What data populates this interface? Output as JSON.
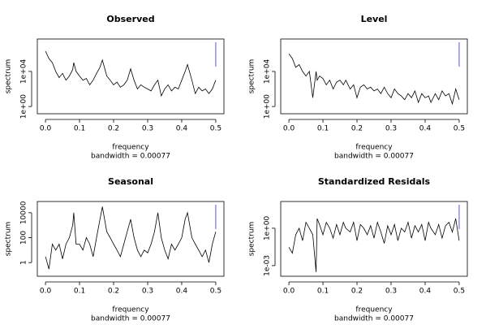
{
  "chart_data": [
    {
      "type": "line",
      "title": "Observed",
      "x_label": "frequency",
      "subtitle": "bandwidth = 0.00077",
      "y_label": "spectrum",
      "ylog": true,
      "color": "#000000",
      "x": [
        0,
        0.01,
        0.02,
        0.03,
        0.04,
        0.05,
        0.06,
        0.07,
        0.08,
        0.083,
        0.09,
        0.1,
        0.11,
        0.12,
        0.13,
        0.14,
        0.15,
        0.16,
        0.167,
        0.18,
        0.19,
        0.2,
        0.21,
        0.22,
        0.23,
        0.24,
        0.25,
        0.26,
        0.27,
        0.28,
        0.29,
        0.3,
        0.31,
        0.32,
        0.33,
        0.34,
        0.35,
        0.36,
        0.37,
        0.38,
        0.39,
        0.4,
        0.41,
        0.417,
        0.43,
        0.44,
        0.45,
        0.46,
        0.47,
        0.48,
        0.49,
        0.5
      ],
      "values": [
        2000000.0,
        300000.0,
        100000.0,
        10000.0,
        2000.0,
        6000.0,
        1000.0,
        3000.0,
        16000.0,
        100000.0,
        10000.0,
        3000.0,
        1000.0,
        1600.0,
        300,
        1000.0,
        6000.0,
        30000.0,
        200000.0,
        3000.0,
        1000.0,
        300,
        600,
        160,
        300,
        1000.0,
        20000.0,
        1000.0,
        100,
        300,
        160,
        100,
        60,
        300,
        1000.0,
        16,
        100,
        300,
        60,
        160,
        100,
        1000.0,
        10000.0,
        60000.0,
        1000.0,
        30,
        160,
        60,
        100,
        30,
        100,
        1000.0
      ],
      "xlim": [
        -0.024,
        0.524
      ],
      "xticks": [
        {
          "value": 0,
          "label": "0.0"
        },
        {
          "value": 0.1,
          "label": "0.1"
        },
        {
          "value": 0.2,
          "label": "0.2"
        },
        {
          "value": 0.3,
          "label": "0.3"
        },
        {
          "value": 0.4,
          "label": "0.4"
        },
        {
          "value": 0.5,
          "label": "0.5"
        }
      ],
      "ylim": [
        0.15,
        50000000.0
      ],
      "yticks": [
        {
          "value": 1,
          "label": "1e+00"
        },
        {
          "value": 10000,
          "label": "1e+04"
        }
      ]
    },
    {
      "type": "line",
      "title": "Level",
      "x_label": "frequency",
      "subtitle": "bandwidth = 0.00077",
      "y_label": "spectrum",
      "ylog": true,
      "color": "#000000",
      "x": [
        0,
        0.01,
        0.02,
        0.03,
        0.04,
        0.05,
        0.06,
        0.07,
        0.08,
        0.083,
        0.09,
        0.1,
        0.11,
        0.12,
        0.13,
        0.14,
        0.15,
        0.16,
        0.167,
        0.18,
        0.19,
        0.2,
        0.21,
        0.22,
        0.23,
        0.24,
        0.25,
        0.26,
        0.27,
        0.28,
        0.29,
        0.3,
        0.31,
        0.32,
        0.33,
        0.34,
        0.35,
        0.36,
        0.37,
        0.38,
        0.39,
        0.4,
        0.41,
        0.417,
        0.43,
        0.44,
        0.45,
        0.46,
        0.47,
        0.48,
        0.49,
        0.5
      ],
      "values": [
        1000000.0,
        300000.0,
        30000.0,
        60000.0,
        10000.0,
        3000.0,
        10000.0,
        10,
        10000.0,
        1000.0,
        3000.0,
        1600.0,
        300,
        1000.0,
        100,
        600,
        1000.0,
        300,
        1000.0,
        100,
        300,
        10,
        160,
        300,
        100,
        160,
        60,
        100,
        30,
        160,
        30,
        10,
        100,
        30,
        16,
        6,
        30,
        10,
        60,
        3,
        30,
        10,
        16,
        3,
        30,
        6,
        60,
        16,
        30,
        2,
        100,
        6
      ],
      "xlim": [
        -0.024,
        0.524
      ],
      "xticks": [
        {
          "value": 0,
          "label": "0.0"
        },
        {
          "value": 0.1,
          "label": "0.1"
        },
        {
          "value": 0.2,
          "label": "0.2"
        },
        {
          "value": 0.3,
          "label": "0.3"
        },
        {
          "value": 0.4,
          "label": "0.4"
        },
        {
          "value": 0.5,
          "label": "0.5"
        }
      ],
      "ylim": [
        0.15,
        50000000.0
      ],
      "yticks": [
        {
          "value": 1,
          "label": "1e+00"
        },
        {
          "value": 10000,
          "label": "1e+04"
        }
      ]
    },
    {
      "type": "line",
      "title": "Seasonal",
      "x_label": "frequency",
      "subtitle": "bandwidth = 0.00077",
      "y_label": "spectrum",
      "ylog": true,
      "color": "#000000",
      "x": [
        0,
        0.01,
        0.02,
        0.03,
        0.04,
        0.05,
        0.06,
        0.07,
        0.08,
        0.083,
        0.09,
        0.1,
        0.11,
        0.12,
        0.13,
        0.14,
        0.15,
        0.16,
        0.167,
        0.18,
        0.19,
        0.2,
        0.21,
        0.22,
        0.23,
        0.24,
        0.25,
        0.26,
        0.27,
        0.28,
        0.29,
        0.3,
        0.31,
        0.32,
        0.33,
        0.34,
        0.35,
        0.36,
        0.37,
        0.38,
        0.39,
        0.4,
        0.41,
        0.417,
        0.43,
        0.44,
        0.45,
        0.46,
        0.47,
        0.48,
        0.49,
        0.5
      ],
      "values": [
        3,
        0.3,
        30,
        10,
        30,
        2,
        30,
        100,
        1000.0,
        10000.0,
        30,
        30,
        10,
        100,
        30,
        3,
        100,
        3000.0,
        30000.0,
        300,
        100,
        30,
        10,
        3,
        30,
        300,
        3000.0,
        100,
        10,
        3,
        10,
        6,
        30,
        300,
        10000.0,
        100,
        10,
        2,
        30,
        10,
        30,
        100,
        3000.0,
        10000.0,
        100,
        30,
        10,
        3,
        10,
        1,
        30,
        300
      ],
      "xlim": [
        -0.024,
        0.524
      ],
      "xticks": [
        {
          "value": 0,
          "label": "0.0"
        },
        {
          "value": 0.1,
          "label": "0.1"
        },
        {
          "value": 0.2,
          "label": "0.2"
        },
        {
          "value": 0.3,
          "label": "0.3"
        },
        {
          "value": 0.4,
          "label": "0.4"
        },
        {
          "value": 0.5,
          "label": "0.5"
        }
      ],
      "ylim": [
        0.08,
        80000.0
      ],
      "yticks": [
        1,
        100,
        10000
      ]
    },
    {
      "type": "line",
      "title": "Standardized Residals",
      "x_label": "frequency",
      "subtitle": "bandwidth = 0.00077",
      "y_label": "spectrum",
      "ylog": true,
      "color": "#000000",
      "x": [
        0,
        0.01,
        0.02,
        0.03,
        0.04,
        0.05,
        0.06,
        0.07,
        0.08,
        0.083,
        0.09,
        0.1,
        0.11,
        0.12,
        0.13,
        0.14,
        0.15,
        0.16,
        0.167,
        0.18,
        0.19,
        0.2,
        0.21,
        0.22,
        0.23,
        0.24,
        0.25,
        0.26,
        0.27,
        0.28,
        0.29,
        0.3,
        0.31,
        0.32,
        0.33,
        0.34,
        0.35,
        0.36,
        0.37,
        0.38,
        0.39,
        0.4,
        0.41,
        0.417,
        0.43,
        0.44,
        0.45,
        0.46,
        0.47,
        0.48,
        0.49,
        0.5
      ],
      "values": [
        0.03,
        0.01,
        0.3,
        1,
        0.1,
        3,
        1,
        0.3,
        0.0003,
        6,
        2,
        0.3,
        3,
        1,
        0.16,
        2,
        0.3,
        3,
        1,
        0.5,
        3,
        0.1,
        2,
        1,
        0.3,
        1.6,
        0.16,
        3,
        0.5,
        0.06,
        1.6,
        0.3,
        2,
        0.1,
        1,
        0.5,
        3,
        0.16,
        1.6,
        0.5,
        2,
        0.1,
        3,
        1,
        0.3,
        2,
        0.16,
        1.6,
        3,
        0.5,
        6,
        0.1
      ],
      "xlim": [
        -0.024,
        0.524
      ],
      "xticks": [
        {
          "value": 0,
          "label": "0.0"
        },
        {
          "value": 0.1,
          "label": "0.1"
        },
        {
          "value": 0.2,
          "label": "0.2"
        },
        {
          "value": 0.3,
          "label": "0.3"
        },
        {
          "value": 0.4,
          "label": "0.4"
        },
        {
          "value": 0.5,
          "label": "0.5"
        }
      ],
      "ylim": [
        0.00014,
        140
      ],
      "yticks": [
        {
          "value": 0.001,
          "label": "1e-03"
        },
        {
          "value": 1,
          "label": "1e+00"
        }
      ]
    }
  ]
}
